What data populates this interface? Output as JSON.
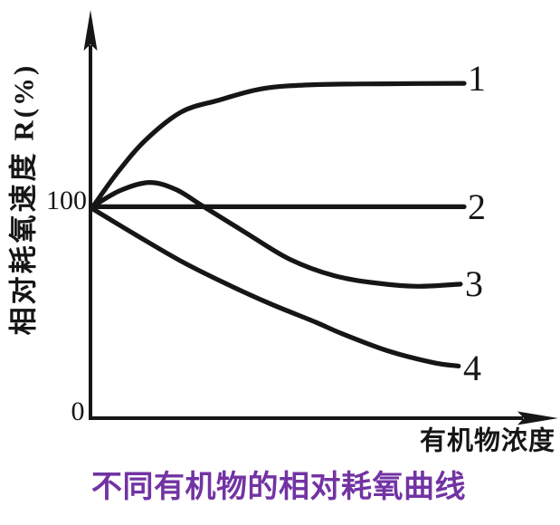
{
  "figure": {
    "y_axis_title": "相对耗氧速度 R(%)",
    "x_axis_title": "有机物浓度",
    "y_tick_100": "100",
    "y_tick_0": "0",
    "caption": "不同有机物的相对耗氧曲线"
  },
  "colors": {
    "ink": "#161616",
    "caption_purple": "#7233A3"
  },
  "chart_data": {
    "type": "line",
    "title": "不同有机物的相对耗氧曲线",
    "xlabel": "有机物浓度",
    "ylabel": "相对耗氧速度 R(%)",
    "x_axis_note": "x axis is unlabeled organic-matter concentration, normalized 0 to 1",
    "ylim": [
      0,
      170
    ],
    "y_ticks": [
      0,
      100
    ],
    "grid": false,
    "legend_position": "labels at right end of each curve",
    "series": [
      {
        "name": "1",
        "description": "rises from 100 and saturates near 157",
        "points": [
          [
            0,
            99
          ],
          [
            0.07,
            116
          ],
          [
            0.145,
            131
          ],
          [
            0.24,
            144
          ],
          [
            0.34,
            149.5
          ],
          [
            0.46,
            155
          ],
          [
            0.6,
            156.8
          ],
          [
            0.78,
            157.2
          ],
          [
            1,
            157.4
          ]
        ]
      },
      {
        "name": "2",
        "description": "constant at 100",
        "points": [
          [
            0,
            99.4
          ],
          [
            0.5,
            99.4
          ],
          [
            1,
            99.4
          ]
        ]
      },
      {
        "name": "3",
        "description": "small hump to ~111 then declines and levels near 62",
        "points": [
          [
            0,
            99.4
          ],
          [
            0.075,
            107
          ],
          [
            0.153,
            110.8
          ],
          [
            0.225,
            107.5
          ],
          [
            0.3,
            99.4
          ],
          [
            0.41,
            87.5
          ],
          [
            0.53,
            74.8
          ],
          [
            0.65,
            67
          ],
          [
            0.77,
            63.4
          ],
          [
            0.875,
            62
          ],
          [
            0.99,
            63
          ]
        ]
      },
      {
        "name": "4",
        "description": "declines monotonically to ~25",
        "points": [
          [
            0,
            98.5
          ],
          [
            0.116,
            86.3
          ],
          [
            0.237,
            74
          ],
          [
            0.358,
            63.4
          ],
          [
            0.48,
            53.7
          ],
          [
            0.6,
            45.2
          ],
          [
            0.672,
            39.7
          ],
          [
            0.794,
            31.7
          ],
          [
            0.915,
            26.2
          ],
          [
            0.985,
            24.5
          ]
        ]
      }
    ]
  }
}
